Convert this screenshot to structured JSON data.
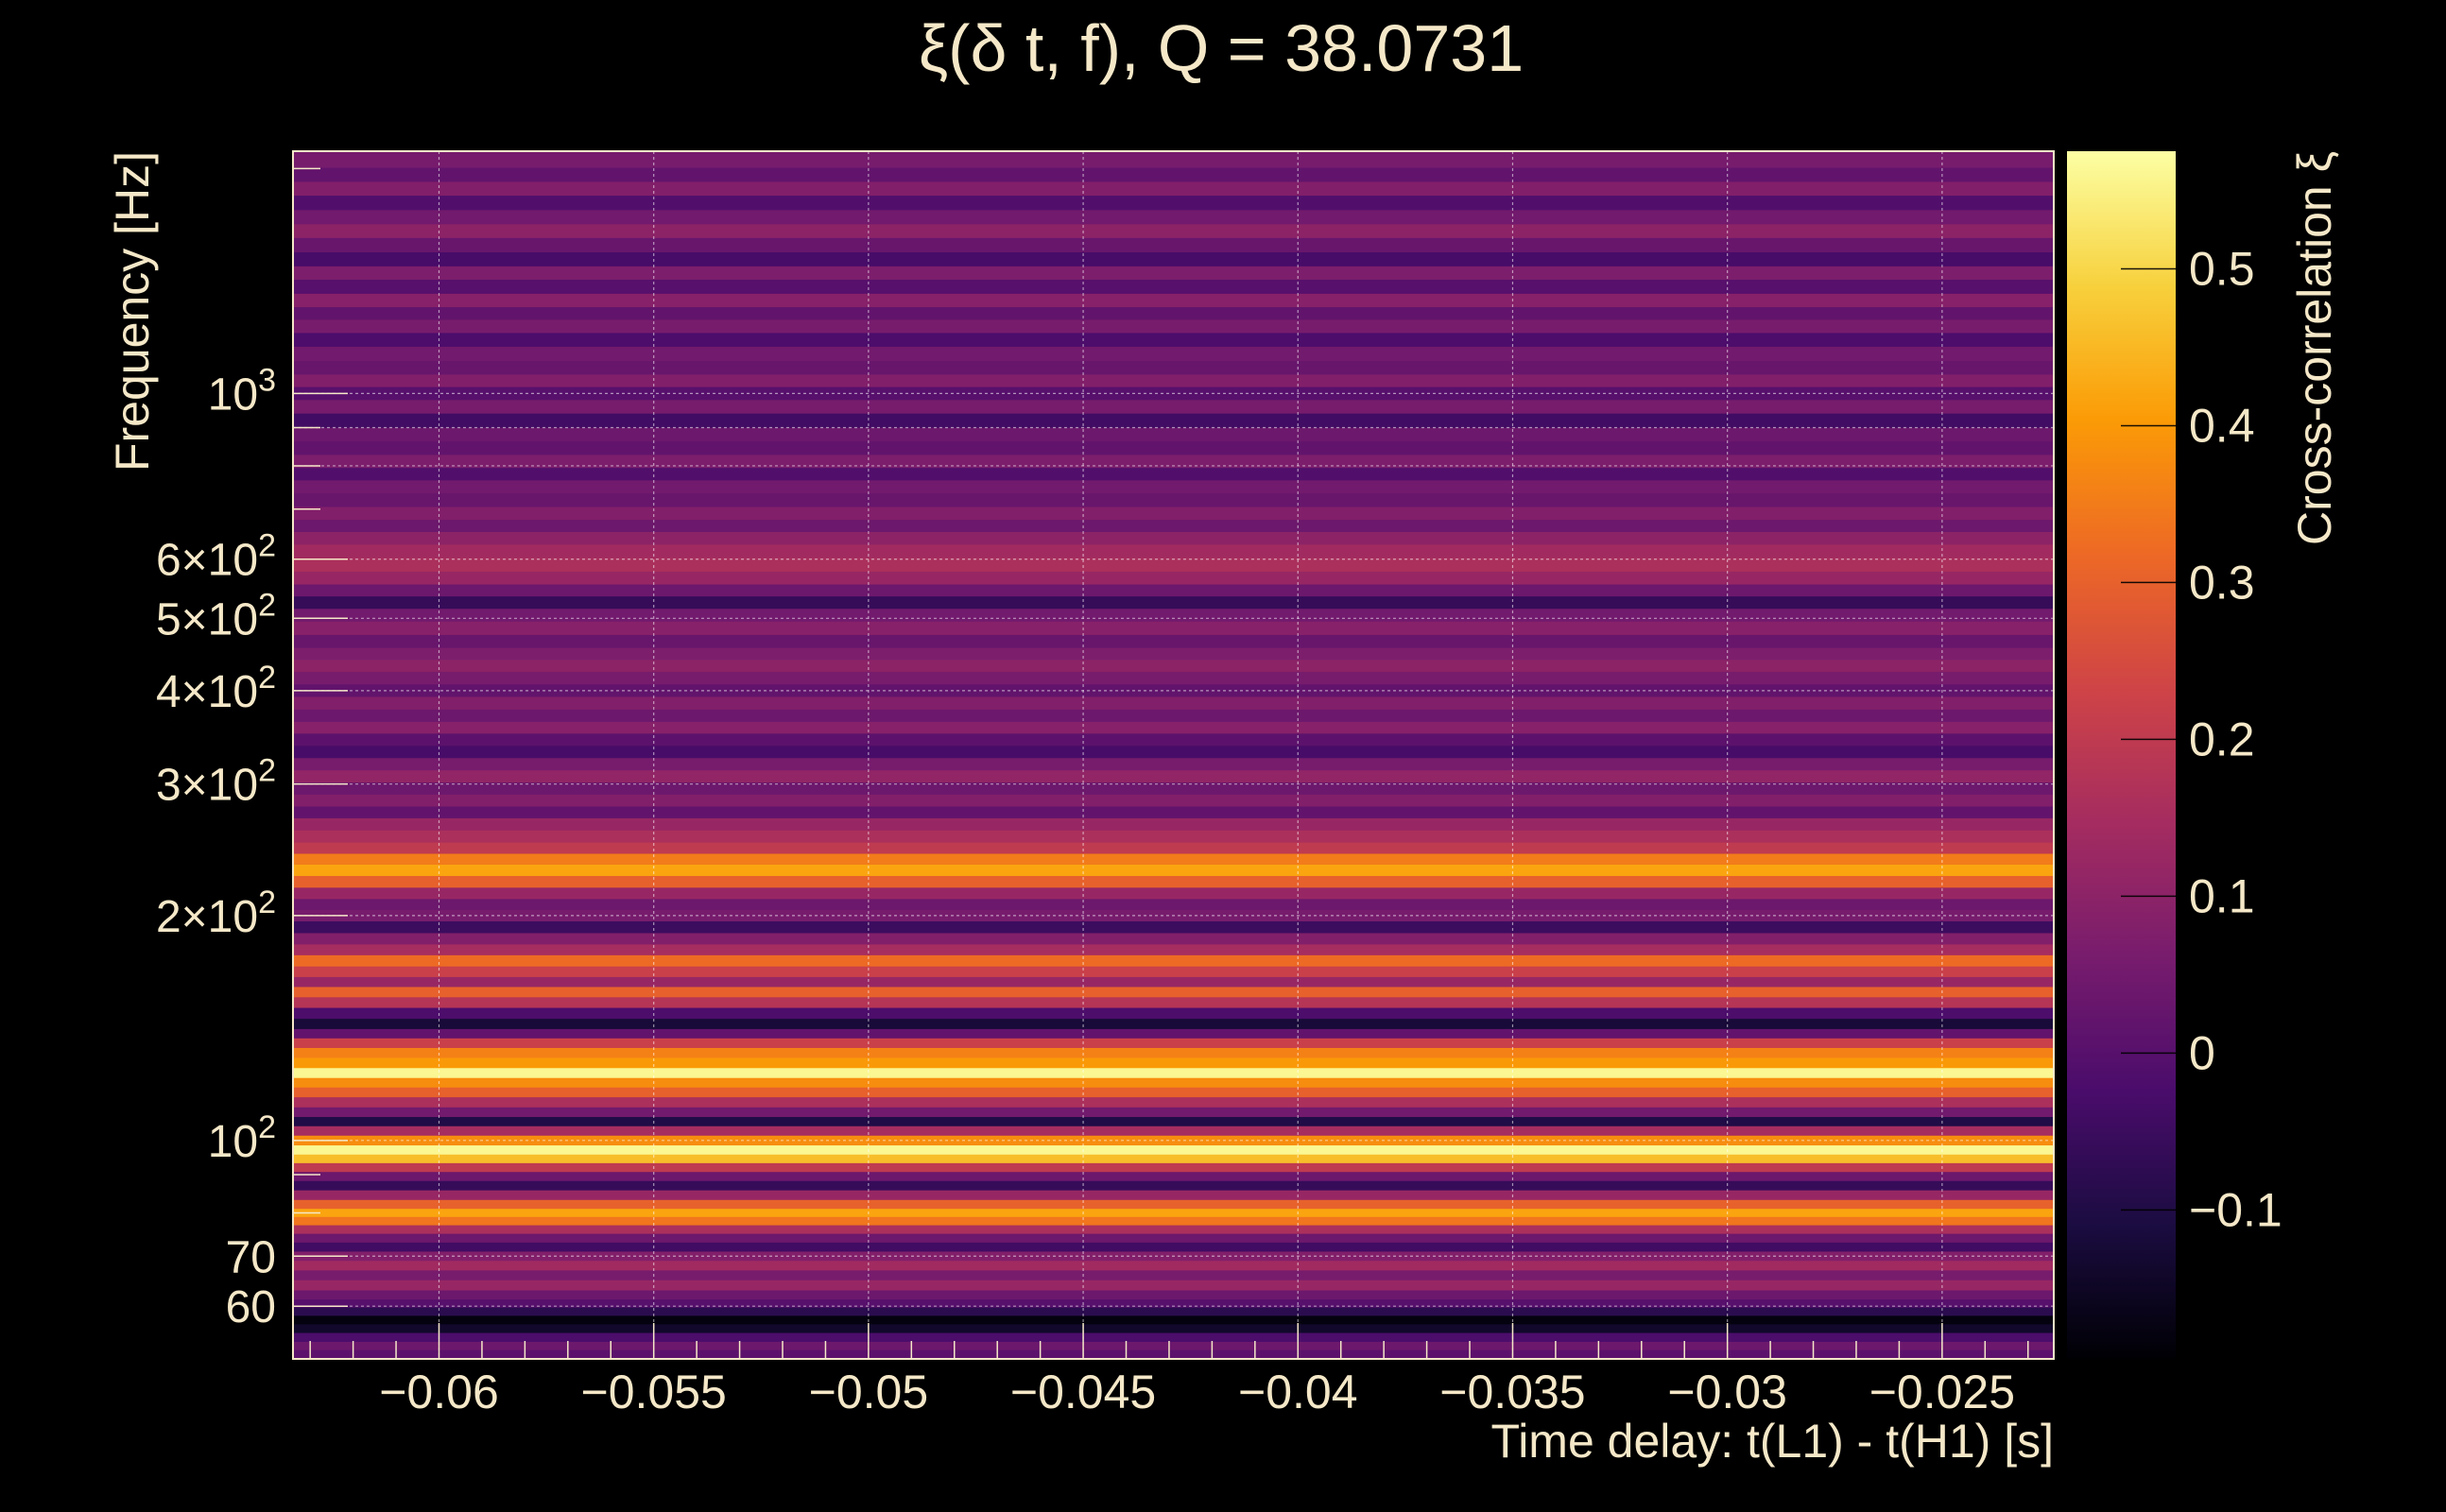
{
  "chart_data": {
    "type": "heatmap",
    "title": "ξ(δ t, f), Q = 38.0731",
    "xlabel": "Time delay: t(L1) - t(H1) [s]",
    "ylabel": "Frequency [Hz]",
    "colorbar_label": "Cross-correlation ξ",
    "x_range": [
      -0.0634,
      -0.0224
    ],
    "y_range": [
      51,
      2110
    ],
    "y_scale": "log",
    "z_range": [
      -0.195,
      0.575
    ],
    "grid": true,
    "x_ticks": [
      {
        "value": -0.06,
        "label": "−0.06"
      },
      {
        "value": -0.055,
        "label": "−0.055"
      },
      {
        "value": -0.05,
        "label": "−0.05"
      },
      {
        "value": -0.045,
        "label": "−0.045"
      },
      {
        "value": -0.04,
        "label": "−0.04"
      },
      {
        "value": -0.035,
        "label": "−0.035"
      },
      {
        "value": -0.03,
        "label": "−0.03"
      },
      {
        "value": -0.025,
        "label": "−0.025"
      }
    ],
    "y_ticks": [
      {
        "value": 60,
        "mant": "60",
        "exp": ""
      },
      {
        "value": 70,
        "mant": "70",
        "exp": ""
      },
      {
        "value": 100,
        "mant": "10",
        "exp": "2"
      },
      {
        "value": 200,
        "mant": "2×10",
        "exp": "2"
      },
      {
        "value": 300,
        "mant": "3×10",
        "exp": "2"
      },
      {
        "value": 400,
        "mant": "4×10",
        "exp": "2"
      },
      {
        "value": 500,
        "mant": "5×10",
        "exp": "2"
      },
      {
        "value": 600,
        "mant": "6×10",
        "exp": "2"
      },
      {
        "value": 1000,
        "mant": "10",
        "exp": "3"
      }
    ],
    "y_grid_extra": [
      800,
      900
    ],
    "z_ticks": [
      {
        "value": -0.1,
        "label": "−0.1"
      },
      {
        "value": 0,
        "label": "0"
      },
      {
        "value": 0.1,
        "label": "0.1"
      },
      {
        "value": 0.2,
        "label": "0.2"
      },
      {
        "value": 0.3,
        "label": "0.3"
      },
      {
        "value": 0.4,
        "label": "0.4"
      },
      {
        "value": 0.5,
        "label": "0.5"
      }
    ],
    "colormap": [
      "#000004",
      "#1b0c41",
      "#4a0c6b",
      "#781c6d",
      "#a52c60",
      "#cf4446",
      "#ed6925",
      "#fb9b06",
      "#f7d13d",
      "#fcffa4"
    ],
    "bands": [
      {
        "f": 2050,
        "z": 0.06
      },
      {
        "f": 1960,
        "z": 0.02
      },
      {
        "f": 1880,
        "z": 0.08
      },
      {
        "f": 1800,
        "z": -0.01
      },
      {
        "f": 1720,
        "z": 0.05
      },
      {
        "f": 1650,
        "z": 0.1
      },
      {
        "f": 1580,
        "z": 0.03
      },
      {
        "f": 1510,
        "z": -0.03
      },
      {
        "f": 1450,
        "z": 0.07
      },
      {
        "f": 1390,
        "z": 0.0
      },
      {
        "f": 1330,
        "z": 0.09
      },
      {
        "f": 1280,
        "z": 0.02
      },
      {
        "f": 1230,
        "z": 0.06
      },
      {
        "f": 1180,
        "z": -0.02
      },
      {
        "f": 1130,
        "z": 0.05
      },
      {
        "f": 1080,
        "z": 0.03
      },
      {
        "f": 1040,
        "z": 0.08
      },
      {
        "f": 1000,
        "z": 0.0
      },
      {
        "f": 960,
        "z": 0.06
      },
      {
        "f": 920,
        "z": -0.04
      },
      {
        "f": 880,
        "z": 0.04
      },
      {
        "f": 845,
        "z": 0.02
      },
      {
        "f": 810,
        "z": 0.07
      },
      {
        "f": 780,
        "z": -0.01
      },
      {
        "f": 750,
        "z": 0.05
      },
      {
        "f": 720,
        "z": 0.03
      },
      {
        "f": 690,
        "z": 0.08
      },
      {
        "f": 665,
        "z": 0.04
      },
      {
        "f": 640,
        "z": 0.1
      },
      {
        "f": 615,
        "z": 0.14
      },
      {
        "f": 590,
        "z": 0.16
      },
      {
        "f": 565,
        "z": 0.12
      },
      {
        "f": 545,
        "z": 0.04
      },
      {
        "f": 525,
        "z": -0.06
      },
      {
        "f": 505,
        "z": 0.05
      },
      {
        "f": 485,
        "z": 0.09
      },
      {
        "f": 465,
        "z": 0.03
      },
      {
        "f": 448,
        "z": 0.07
      },
      {
        "f": 432,
        "z": 0.1
      },
      {
        "f": 416,
        "z": 0.06
      },
      {
        "f": 400,
        "z": 0.02
      },
      {
        "f": 385,
        "z": 0.08
      },
      {
        "f": 370,
        "z": 0.04
      },
      {
        "f": 357,
        "z": 0.09
      },
      {
        "f": 344,
        "z": 0.01
      },
      {
        "f": 331,
        "z": -0.03
      },
      {
        "f": 319,
        "z": 0.06
      },
      {
        "f": 307,
        "z": 0.11
      },
      {
        "f": 296,
        "z": 0.04
      },
      {
        "f": 285,
        "z": 0.08
      },
      {
        "f": 275,
        "z": 0.02
      },
      {
        "f": 265,
        "z": 0.12
      },
      {
        "f": 255,
        "z": 0.16
      },
      {
        "f": 246,
        "z": 0.2
      },
      {
        "f": 238,
        "z": 0.35
      },
      {
        "f": 230,
        "z": 0.42
      },
      {
        "f": 222,
        "z": 0.3
      },
      {
        "f": 214,
        "z": 0.12
      },
      {
        "f": 207,
        "z": 0.04
      },
      {
        "f": 200,
        "z": 0.06
      },
      {
        "f": 193,
        "z": -0.05
      },
      {
        "f": 186,
        "z": 0.08
      },
      {
        "f": 180,
        "z": 0.15
      },
      {
        "f": 174,
        "z": 0.32
      },
      {
        "f": 168,
        "z": 0.22
      },
      {
        "f": 163,
        "z": 0.12
      },
      {
        "f": 158,
        "z": 0.3
      },
      {
        "f": 153,
        "z": 0.18
      },
      {
        "f": 148,
        "z": -0.02
      },
      {
        "f": 143,
        "z": -0.12
      },
      {
        "f": 139,
        "z": 0.02
      },
      {
        "f": 135,
        "z": 0.22
      },
      {
        "f": 131,
        "z": 0.36
      },
      {
        "f": 127,
        "z": 0.4
      },
      {
        "f": 123,
        "z": 0.56
      },
      {
        "f": 119.5,
        "z": 0.38
      },
      {
        "f": 116,
        "z": 0.3
      },
      {
        "f": 112.5,
        "z": 0.16
      },
      {
        "f": 109,
        "z": 0.05
      },
      {
        "f": 106,
        "z": -0.1
      },
      {
        "f": 103,
        "z": 0.15
      },
      {
        "f": 100,
        "z": 0.38
      },
      {
        "f": 97,
        "z": 0.56
      },
      {
        "f": 94.5,
        "z": 0.46
      },
      {
        "f": 92,
        "z": 0.2
      },
      {
        "f": 89.5,
        "z": 0.04
      },
      {
        "f": 87,
        "z": -0.06
      },
      {
        "f": 84.5,
        "z": 0.12
      },
      {
        "f": 82,
        "z": 0.3
      },
      {
        "f": 80,
        "z": 0.42
      },
      {
        "f": 78,
        "z": 0.34
      },
      {
        "f": 76,
        "z": 0.16
      },
      {
        "f": 74,
        "z": 0.04
      },
      {
        "f": 72,
        "z": -0.04
      },
      {
        "f": 70,
        "z": 0.08
      },
      {
        "f": 68,
        "z": 0.14
      },
      {
        "f": 66,
        "z": 0.06
      },
      {
        "f": 64,
        "z": 0.12
      },
      {
        "f": 62,
        "z": 0.04
      },
      {
        "f": 60.5,
        "z": 0.0
      },
      {
        "f": 59,
        "z": -0.08
      },
      {
        "f": 57.5,
        "z": -0.18
      },
      {
        "f": 56,
        "z": -0.14
      },
      {
        "f": 54.5,
        "z": -0.02
      },
      {
        "f": 53,
        "z": 0.04
      },
      {
        "f": 51.8,
        "z": 0.01
      }
    ]
  }
}
